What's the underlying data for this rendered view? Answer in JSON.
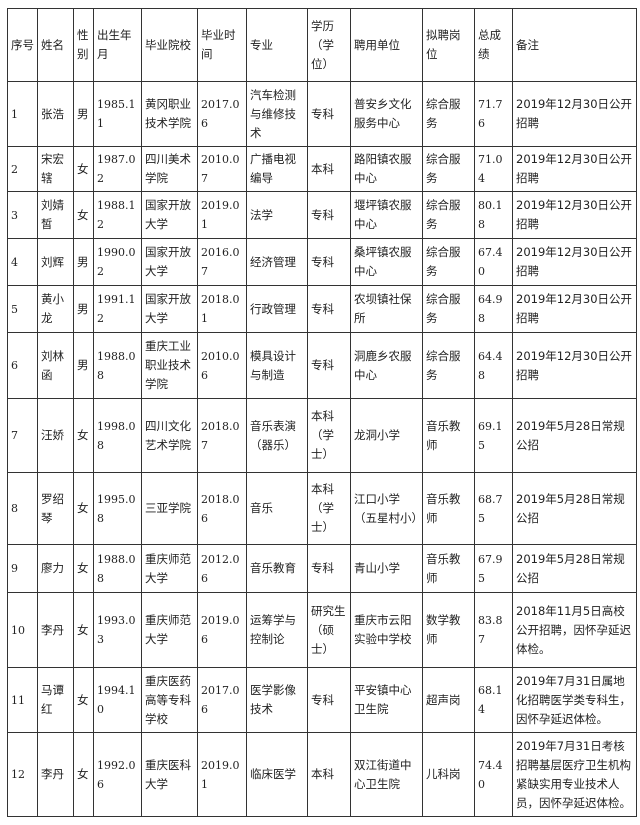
{
  "headers": [
    "序号",
    "姓名",
    "性别",
    "出生年月",
    "毕业院校",
    "毕业时间",
    "专业",
    "学历（学位）",
    "聘用单位",
    "拟聘岗位",
    "总成绩",
    "备注"
  ],
  "rows": [
    [
      "1",
      "张浩",
      "男",
      "1985.11",
      "黄冈职业技术学院",
      "2017.06",
      "汽车检测与维修技术",
      "专科",
      "普安乡文化服务中心",
      "综合服务",
      "71.76",
      "2019年12月30日公开招聘"
    ],
    [
      "2",
      "宋宏辖",
      "女",
      "1987.02",
      "四川美术学院",
      "2010.07",
      "广播电视编导",
      "本科",
      "路阳镇农服中心",
      "综合服务",
      "71.04",
      "2019年12月30日公开招聘"
    ],
    [
      "3",
      "刘婧皙",
      "女",
      "1988.12",
      "国家开放大学",
      "2019.01",
      "法学",
      "专科",
      "堰坪镇农服中心",
      "综合服务",
      "80.18",
      "2019年12月30日公开招聘"
    ],
    [
      "4",
      "刘辉",
      "男",
      "1990.02",
      "国家开放大学",
      "2016.07",
      "经济管理",
      "专科",
      "桑坪镇农服中心",
      "综合服务",
      "67.40",
      "2019年12月30日公开招聘"
    ],
    [
      "5",
      "黄小龙",
      "男",
      "1991.12",
      "国家开放大学",
      "2018.01",
      "行政管理",
      "专科",
      "农坝镇社保所",
      "综合服务",
      "64.98",
      "2019年12月30日公开招聘"
    ],
    [
      "6",
      "刘林函",
      "男",
      "1988.08",
      "重庆工业职业技术学院",
      "2010.06",
      "模具设计与制造",
      "专科",
      "洞鹿乡农服中心",
      "综合服务",
      "64.48",
      "2019年12月30日公开招聘"
    ],
    [
      "7",
      "汪娇",
      "女",
      "1998.08",
      "四川文化艺术学院",
      "2018.07",
      "音乐表演（器乐）",
      "本科（学士）",
      "龙洞小学",
      "音乐教师",
      "69.15",
      "2019年5月28日常规公招"
    ],
    [
      "8",
      "罗绍琴",
      "女",
      "1995.08",
      "三亚学院",
      "2018.06",
      "音乐",
      "本科（学士）",
      "江口小学（五星村小）",
      "音乐教师",
      "68.75",
      "2019年5月28日常规公招"
    ],
    [
      "9",
      "廖力",
      "女",
      "1988.08",
      "重庆师范大学",
      "2012.06",
      "音乐教育",
      "专科",
      "青山小学",
      "音乐教师",
      "67.95",
      "2019年5月28日常规公招"
    ],
    [
      "10",
      "李丹",
      "女",
      "1993.03",
      "重庆师范大学",
      "2019.06",
      "运筹学与控制论",
      "研究生（硕士）",
      "重庆市云阳实验中学校",
      "数学教师",
      "83.87",
      "2018年11月5日高校公开招聘，因怀孕延迟体检。"
    ],
    [
      "11",
      "马谭红",
      "女",
      "1994.10",
      "重庆医药高等专科学校",
      "2017.06",
      "医学影像技术",
      "专科",
      "平安镇中心卫生院",
      "超声岗",
      "68.14",
      "2019年7月31日属地化招聘医学类专科生，因怀孕延迟体检。"
    ],
    [
      "12",
      "李丹",
      "女",
      "1992.06",
      "重庆医科大学",
      "2019.01",
      "临床医学",
      "本科",
      "双江街道中心卫生院",
      "儿科岗",
      "74.40",
      "2019年7月31日考核招聘基层医疗卫生机构紧缺实用专业技术人员，因怀孕延迟体检。"
    ]
  ]
}
